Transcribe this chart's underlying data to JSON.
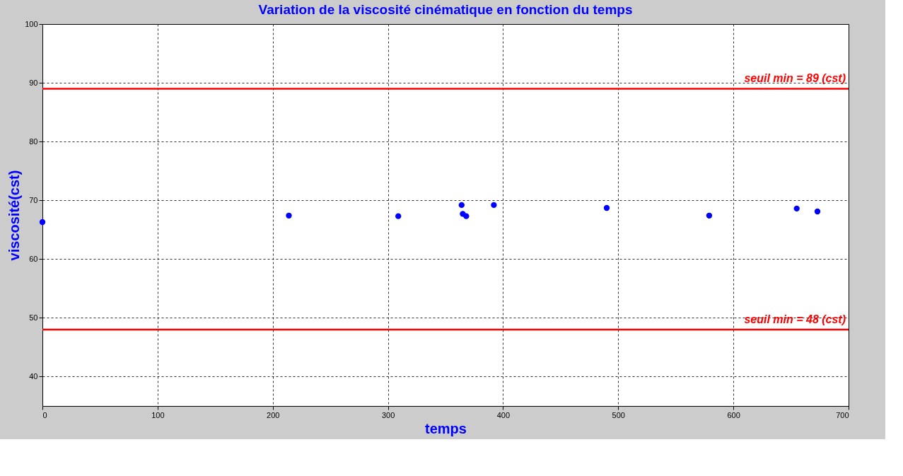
{
  "chart_data": {
    "type": "scatter",
    "title": "Variation de la viscosité cinématique en fonction du temps",
    "xlabel": "temps",
    "ylabel": "viscosité(cst)",
    "x": [
      0,
      214,
      309,
      364,
      365,
      368,
      392,
      490,
      579,
      655,
      673
    ],
    "series": [
      {
        "color": "#0000ff",
        "values": [
          66.3,
          67.4,
          67.3,
          69.2,
          67.7,
          67.3,
          69.2,
          68.7,
          67.4,
          68.6,
          68.1
        ]
      }
    ],
    "xlim": [
      0,
      700
    ],
    "xticks": [
      0,
      100,
      200,
      300,
      400,
      500,
      600,
      700
    ],
    "ylim": [
      35,
      100
    ],
    "yticks": [
      40,
      50,
      60,
      70,
      80,
      90,
      100
    ],
    "ref_lines": [
      {
        "axis": "y",
        "value": 89,
        "label": "seuil min = 89 (cst)",
        "color": "#ff0000"
      },
      {
        "axis": "y",
        "value": 48,
        "label": "seuil min = 48 (cst)",
        "color": "#ff0000"
      }
    ],
    "grid": true,
    "marker": "circle"
  }
}
